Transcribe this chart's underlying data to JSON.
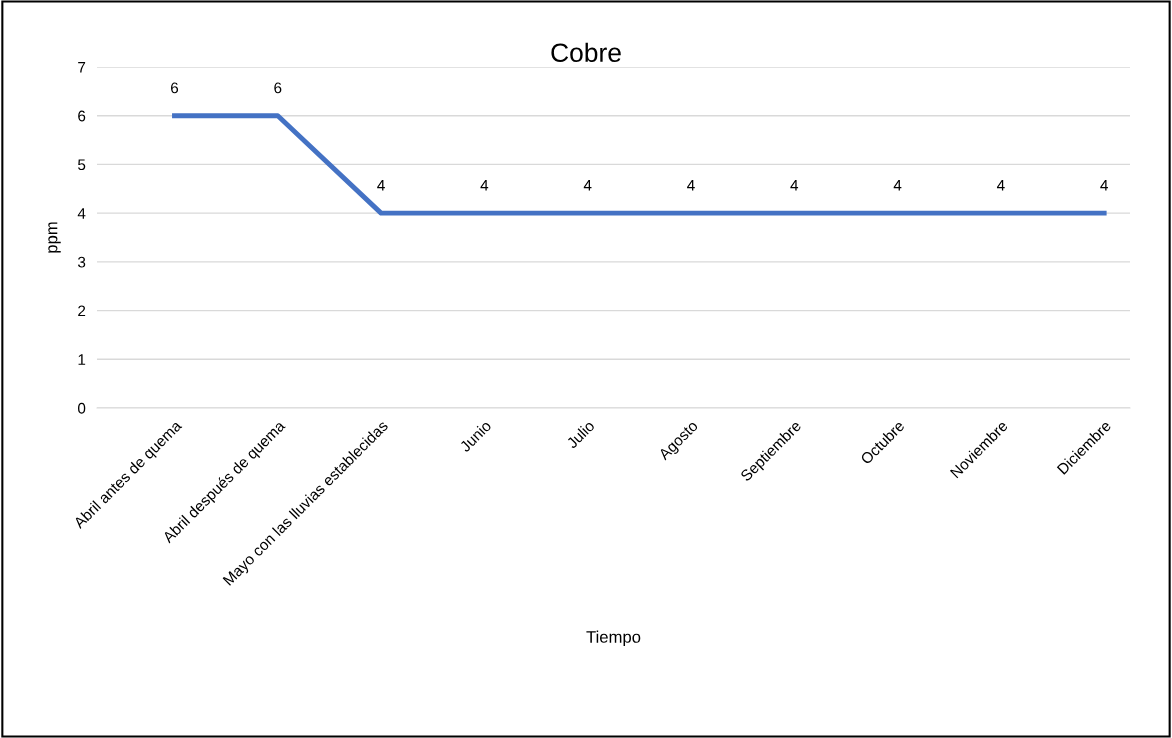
{
  "chart_data": {
    "type": "line",
    "title": "Cobre",
    "xlabel": "Tiempo",
    "ylabel": "ppm",
    "categories": [
      "Abril antes de quema",
      "Abril después de quema",
      "Mayo con las lluvias establecidas",
      "Junio",
      "Julio",
      "Agosto",
      "Septiembre",
      "Octubre",
      "Noviembre",
      "Diciembre"
    ],
    "series": [
      {
        "color": "#4472c4",
        "values": [
          6,
          6,
          4,
          4,
          4,
          4,
          4,
          4,
          4,
          4
        ]
      }
    ],
    "ylim": [
      0,
      7
    ],
    "yticks": [
      0,
      1,
      2,
      3,
      4,
      5,
      6,
      7
    ],
    "grid": "y",
    "data_labels": true,
    "marker": "none",
    "line_style": "solid"
  }
}
